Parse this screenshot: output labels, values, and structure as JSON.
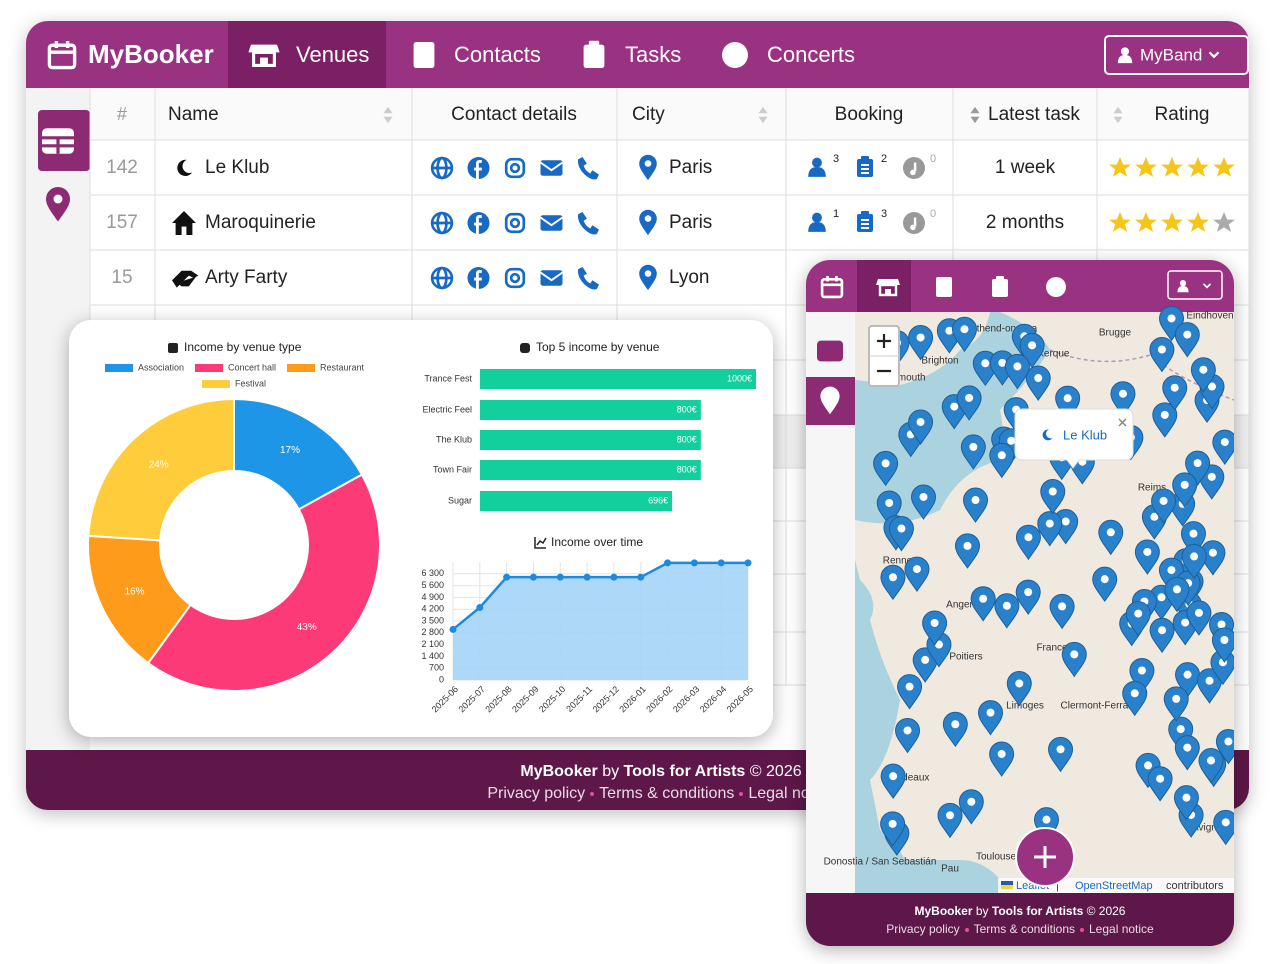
{
  "app": {
    "brand": "MyBooker",
    "nav": [
      "Venues",
      "Contacts",
      "Tasks",
      "Concerts"
    ],
    "user": "MyBand"
  },
  "table": {
    "headers": [
      "#",
      "Name",
      "Contact details",
      "City",
      "Booking",
      "Latest task",
      "Rating"
    ],
    "rows": [
      {
        "id": 142,
        "name": "Le Klub",
        "city": "Paris",
        "booking": {
          "contacts": 3,
          "tasks": 2,
          "concerts": 0
        },
        "latest": "1 week",
        "rating": 5
      },
      {
        "id": 157,
        "name": "Maroquinerie",
        "city": "Paris",
        "booking": {
          "contacts": 1,
          "tasks": 3,
          "concerts": 0
        },
        "latest": "2 months",
        "rating": 4
      },
      {
        "id": 15,
        "name": "Arty Farty",
        "city": "Lyon"
      }
    ]
  },
  "chart_data": [
    {
      "type": "pie",
      "title": "Income by venue type",
      "categories": [
        "Association",
        "Concert hall",
        "Restaurant",
        "Festival"
      ],
      "values": [
        17,
        43,
        16,
        24
      ],
      "value_labels": [
        "17%",
        "43%",
        "16%",
        "24%"
      ],
      "colors": [
        "#1e96e8",
        "#fc3a78",
        "#ff9b1a",
        "#ffcd3c"
      ]
    },
    {
      "type": "bar",
      "orientation": "horizontal",
      "title": "Top 5 income by venue",
      "categories": [
        "Trance Fest",
        "Electric Feel",
        "The Klub",
        "Town Fair",
        "Sugar"
      ],
      "values": [
        1000,
        800,
        800,
        800,
        696
      ],
      "value_labels": [
        "1000€",
        "800€",
        "800€",
        "800€",
        "696€"
      ],
      "color": "#12cf9d"
    },
    {
      "type": "line",
      "title": "Income over time",
      "categories": [
        "2025-06",
        "2025-07",
        "2025-08",
        "2025-09",
        "2025-10",
        "2025-11",
        "2025-12",
        "2026-01",
        "2026-02",
        "2026-03",
        "2026-04",
        "2026-05"
      ],
      "values": [
        3000,
        4300,
        6100,
        6100,
        6100,
        6100,
        6100,
        6100,
        6950,
        6950,
        6950,
        6950
      ],
      "ylim": [
        0,
        7000
      ],
      "yticks": [
        0,
        700,
        {
          "value": 1400,
          "label": "1 400"
        },
        {
          "value": 2100,
          "label": "2 100"
        },
        {
          "value": 2800,
          "label": "2 800"
        },
        {
          "value": 3500,
          "label": "3 500"
        },
        {
          "value": 4200,
          "label": "4 200"
        },
        {
          "value": 4900,
          "label": "4 900"
        },
        {
          "value": 5600,
          "label": "5 600"
        },
        {
          "value": 6300,
          "label": "6 300"
        }
      ],
      "grid": true,
      "color": "#1d8ae0",
      "fill": "#a4d4f7"
    }
  ],
  "map": {
    "labels": [
      "Southend-on-Sea",
      "Brugge",
      "Eindhoven",
      "Brighton",
      "Dunkerque",
      "Portsmouth",
      "Reims",
      "Rennes",
      "Angers",
      "Poitiers",
      "France",
      "Limoges",
      "Clermont-Ferrand",
      "Bordeaux",
      "Toulouse",
      "Avignon",
      "Pau",
      "Donostia / San Sebastián"
    ],
    "popup": "Le Klub",
    "attribution": {
      "leaflet": "Leaflet",
      "osm": "OpenStreetMap",
      "contributors": "contributors"
    }
  },
  "footer": {
    "brand": "MyBooker",
    "by": "by",
    "company": "Tools for Artists",
    "copyright": "© 2026",
    "links": [
      "Privacy policy",
      "Terms & conditions",
      "Legal notice"
    ]
  }
}
